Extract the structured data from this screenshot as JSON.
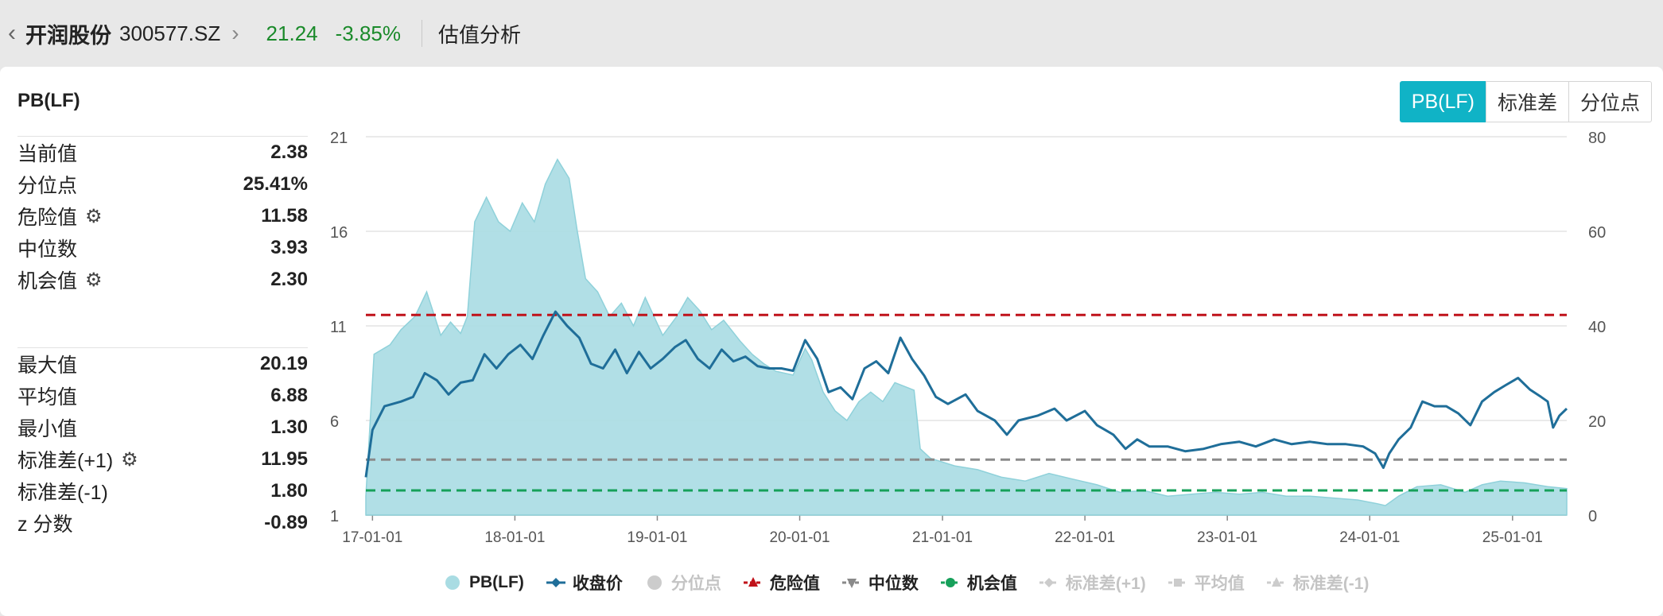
{
  "header": {
    "back_icon": "chevron-left-icon",
    "stock_name": "开润股份",
    "stock_code": "300577.SZ",
    "nav_icon": "chevron-right-icon",
    "price": "21.24",
    "change": "-3.85%",
    "section": "估值分析",
    "price_color": "#1a8a2a"
  },
  "panel": {
    "title": "PB(LF)",
    "tabs": [
      "PB(LF)",
      "标准差",
      "分位点"
    ],
    "active_tab": "PB(LF)",
    "accent": "#10b3c6"
  },
  "stats_top": [
    {
      "label": "当前值",
      "value": "2.38",
      "gear": false
    },
    {
      "label": "分位点",
      "value": "25.41%",
      "gear": false
    },
    {
      "label": "危险值",
      "value": "11.58",
      "gear": true
    },
    {
      "label": "中位数",
      "value": "3.93",
      "gear": false
    },
    {
      "label": "机会值",
      "value": "2.30",
      "gear": true
    }
  ],
  "stats_bottom": [
    {
      "label": "最大值",
      "value": "20.19",
      "gear": false
    },
    {
      "label": "平均值",
      "value": "6.88",
      "gear": false
    },
    {
      "label": "最小值",
      "value": "1.30",
      "gear": false
    },
    {
      "label": "标准差(+1)",
      "value": "11.95",
      "gear": true
    },
    {
      "label": "标准差(-1)",
      "value": "1.80",
      "gear": false
    },
    {
      "label": "z 分数",
      "value": "-0.89",
      "gear": false
    }
  ],
  "legend": [
    {
      "label": "PB(LF)",
      "color": "#a9dce3",
      "marker": "circle",
      "active": true
    },
    {
      "label": "收盘价",
      "color": "#1f6e99",
      "marker": "line-diamond",
      "active": true
    },
    {
      "label": "分位点",
      "color": "#cccccc",
      "marker": "circle",
      "active": false
    },
    {
      "label": "危险值",
      "color": "#c0121a",
      "marker": "dash-triangle",
      "active": true
    },
    {
      "label": "中位数",
      "color": "#8a8a8a",
      "marker": "dash-triangle-down",
      "active": true
    },
    {
      "label": "机会值",
      "color": "#16a05a",
      "marker": "dash-circle",
      "active": true
    },
    {
      "label": "标准差(+1)",
      "color": "#cccccc",
      "marker": "dash-diamond",
      "active": false
    },
    {
      "label": "平均值",
      "color": "#cccccc",
      "marker": "dash-square",
      "active": false
    },
    {
      "label": "标准差(-1)",
      "color": "#cccccc",
      "marker": "dash-triangle",
      "active": false
    }
  ],
  "chart_data": {
    "type": "area",
    "x_ticks": [
      "17-01-01",
      "18-01-01",
      "19-01-01",
      "20-01-01",
      "21-01-01",
      "22-01-01",
      "23-01-01",
      "24-01-01",
      "25-01-01"
    ],
    "x_range": [
      "2016-12-15",
      "2025-05-20"
    ],
    "y_left_ticks": [
      1,
      6,
      11,
      16,
      21
    ],
    "y_left_range": [
      1,
      21
    ],
    "y_right_ticks": [
      0,
      20,
      40,
      60,
      80
    ],
    "y_right_range": [
      0,
      80
    ],
    "reference_lines": [
      {
        "name": "危险值",
        "value": 11.58,
        "axis": "left",
        "color": "#c0121a"
      },
      {
        "name": "中位数",
        "value": 3.93,
        "axis": "left",
        "color": "#8a8a8a"
      },
      {
        "name": "机会值",
        "value": 2.3,
        "axis": "left",
        "color": "#16a05a"
      }
    ],
    "series": [
      {
        "name": "PB(LF)",
        "axis": "left",
        "style": "area",
        "color": "#a9dce3",
        "points": [
          [
            "2016-12-15",
            2.0
          ],
          [
            "2017-01-05",
            9.5
          ],
          [
            "2017-02-15",
            10.0
          ],
          [
            "2017-03-15",
            10.8
          ],
          [
            "2017-04-20",
            11.5
          ],
          [
            "2017-05-20",
            12.8
          ],
          [
            "2017-06-25",
            10.5
          ],
          [
            "2017-07-20",
            11.2
          ],
          [
            "2017-08-15",
            10.6
          ],
          [
            "2017-09-01",
            11.5
          ],
          [
            "2017-09-20",
            16.5
          ],
          [
            "2017-10-20",
            17.8
          ],
          [
            "2017-11-20",
            16.5
          ],
          [
            "2017-12-20",
            16.0
          ],
          [
            "2018-01-20",
            17.5
          ],
          [
            "2018-02-20",
            16.5
          ],
          [
            "2018-03-20",
            18.5
          ],
          [
            "2018-04-20",
            19.8
          ],
          [
            "2018-05-20",
            18.8
          ],
          [
            "2018-06-10",
            16.0
          ],
          [
            "2018-07-01",
            13.5
          ],
          [
            "2018-08-01",
            12.8
          ],
          [
            "2018-09-01",
            11.5
          ],
          [
            "2018-10-01",
            12.2
          ],
          [
            "2018-11-01",
            11.0
          ],
          [
            "2018-12-01",
            12.5
          ],
          [
            "2019-01-15",
            10.5
          ],
          [
            "2019-02-20",
            11.5
          ],
          [
            "2019-03-20",
            12.5
          ],
          [
            "2019-04-20",
            11.8
          ],
          [
            "2019-05-20",
            10.8
          ],
          [
            "2019-06-20",
            11.3
          ],
          [
            "2019-08-01",
            10.2
          ],
          [
            "2019-09-01",
            9.5
          ],
          [
            "2019-10-01",
            9.0
          ],
          [
            "2019-11-01",
            8.6
          ],
          [
            "2019-12-15",
            8.4
          ],
          [
            "2020-01-15",
            9.8
          ],
          [
            "2020-02-01",
            9.2
          ],
          [
            "2020-03-01",
            7.5
          ],
          [
            "2020-04-01",
            6.5
          ],
          [
            "2020-05-01",
            6.0
          ],
          [
            "2020-06-01",
            7.0
          ],
          [
            "2020-07-01",
            7.5
          ],
          [
            "2020-08-01",
            7.0
          ],
          [
            "2020-09-01",
            8.0
          ],
          [
            "2020-10-20",
            7.6
          ],
          [
            "2020-11-05",
            4.5
          ],
          [
            "2020-12-01",
            4.0
          ],
          [
            "2021-02-01",
            3.6
          ],
          [
            "2021-04-01",
            3.4
          ],
          [
            "2021-06-01",
            3.0
          ],
          [
            "2021-08-01",
            2.8
          ],
          [
            "2021-10-01",
            3.2
          ],
          [
            "2021-12-01",
            2.9
          ],
          [
            "2022-02-01",
            2.6
          ],
          [
            "2022-04-01",
            2.2
          ],
          [
            "2022-06-01",
            2.3
          ],
          [
            "2022-08-01",
            2.0
          ],
          [
            "2022-10-01",
            2.1
          ],
          [
            "2022-12-01",
            2.2
          ],
          [
            "2023-02-01",
            2.1
          ],
          [
            "2023-04-01",
            2.2
          ],
          [
            "2023-06-01",
            2.0
          ],
          [
            "2023-08-01",
            2.0
          ],
          [
            "2023-10-01",
            1.9
          ],
          [
            "2023-12-01",
            1.8
          ],
          [
            "2024-01-20",
            1.6
          ],
          [
            "2024-02-10",
            1.5
          ],
          [
            "2024-03-15",
            2.0
          ],
          [
            "2024-05-01",
            2.5
          ],
          [
            "2024-07-01",
            2.6
          ],
          [
            "2024-09-01",
            2.2
          ],
          [
            "2024-10-15",
            2.6
          ],
          [
            "2024-12-01",
            2.8
          ],
          [
            "2025-02-01",
            2.7
          ],
          [
            "2025-04-01",
            2.5
          ],
          [
            "2025-05-20",
            2.4
          ]
        ]
      },
      {
        "name": "收盘价",
        "axis": "right",
        "style": "line",
        "color": "#1f6e99",
        "points": [
          [
            "2016-12-15",
            8.0
          ],
          [
            "2017-01-01",
            18.0
          ],
          [
            "2017-02-01",
            23.0
          ],
          [
            "2017-03-15",
            24.0
          ],
          [
            "2017-04-15",
            25.0
          ],
          [
            "2017-05-15",
            30.0
          ],
          [
            "2017-06-15",
            28.5
          ],
          [
            "2017-07-15",
            25.5
          ],
          [
            "2017-08-15",
            28.0
          ],
          [
            "2017-09-15",
            28.5
          ],
          [
            "2017-10-15",
            34.0
          ],
          [
            "2017-11-15",
            31.0
          ],
          [
            "2017-12-15",
            34.0
          ],
          [
            "2018-01-15",
            36.0
          ],
          [
            "2018-02-15",
            33.0
          ],
          [
            "2018-03-15",
            38.0
          ],
          [
            "2018-04-15",
            43.0
          ],
          [
            "2018-05-15",
            40.0
          ],
          [
            "2018-06-15",
            37.5
          ],
          [
            "2018-07-15",
            32.0
          ],
          [
            "2018-08-15",
            31.0
          ],
          [
            "2018-09-15",
            35.0
          ],
          [
            "2018-10-15",
            30.0
          ],
          [
            "2018-11-15",
            34.5
          ],
          [
            "2018-12-15",
            31.0
          ],
          [
            "2019-01-15",
            33.0
          ],
          [
            "2019-02-15",
            35.5
          ],
          [
            "2019-03-15",
            37.0
          ],
          [
            "2019-04-15",
            33.0
          ],
          [
            "2019-05-15",
            31.0
          ],
          [
            "2019-06-15",
            35.0
          ],
          [
            "2019-07-15",
            32.5
          ],
          [
            "2019-08-15",
            33.5
          ],
          [
            "2019-09-15",
            31.5
          ],
          [
            "2019-10-15",
            31.0
          ],
          [
            "2019-11-15",
            31.0
          ],
          [
            "2019-12-15",
            30.5
          ],
          [
            "2020-01-15",
            37.0
          ],
          [
            "2020-02-15",
            33.0
          ],
          [
            "2020-03-15",
            26.0
          ],
          [
            "2020-04-15",
            27.0
          ],
          [
            "2020-05-15",
            24.5
          ],
          [
            "2020-06-15",
            31.0
          ],
          [
            "2020-07-15",
            32.5
          ],
          [
            "2020-08-15",
            30.0
          ],
          [
            "2020-09-15",
            37.5
          ],
          [
            "2020-10-15",
            33.0
          ],
          [
            "2020-11-15",
            29.5
          ],
          [
            "2020-12-15",
            25.0
          ],
          [
            "2021-01-15",
            23.5
          ],
          [
            "2021-03-01",
            25.5
          ],
          [
            "2021-04-01",
            22.0
          ],
          [
            "2021-05-15",
            20.0
          ],
          [
            "2021-06-15",
            17.0
          ],
          [
            "2021-07-15",
            20.0
          ],
          [
            "2021-09-01",
            21.0
          ],
          [
            "2021-10-15",
            22.5
          ],
          [
            "2021-11-15",
            20.0
          ],
          [
            "2022-01-01",
            22.0
          ],
          [
            "2022-02-01",
            19.0
          ],
          [
            "2022-03-15",
            17.0
          ],
          [
            "2022-04-15",
            14.0
          ],
          [
            "2022-05-15",
            16.0
          ],
          [
            "2022-06-15",
            14.5
          ],
          [
            "2022-08-01",
            14.5
          ],
          [
            "2022-09-15",
            13.5
          ],
          [
            "2022-11-01",
            14.0
          ],
          [
            "2022-12-15",
            15.0
          ],
          [
            "2023-02-01",
            15.5
          ],
          [
            "2023-03-15",
            14.5
          ],
          [
            "2023-05-01",
            16.0
          ],
          [
            "2023-06-15",
            15.0
          ],
          [
            "2023-08-01",
            15.5
          ],
          [
            "2023-09-15",
            15.0
          ],
          [
            "2023-11-01",
            15.0
          ],
          [
            "2023-12-15",
            14.5
          ],
          [
            "2024-01-15",
            13.0
          ],
          [
            "2024-02-05",
            10.0
          ],
          [
            "2024-02-20",
            13.0
          ],
          [
            "2024-03-15",
            16.0
          ],
          [
            "2024-04-15",
            18.5
          ],
          [
            "2024-05-15",
            24.0
          ],
          [
            "2024-06-15",
            23.0
          ],
          [
            "2024-07-15",
            23.0
          ],
          [
            "2024-08-15",
            21.5
          ],
          [
            "2024-09-15",
            19.0
          ],
          [
            "2024-10-15",
            24.0
          ],
          [
            "2024-11-15",
            26.0
          ],
          [
            "2024-12-15",
            27.5
          ],
          [
            "2025-01-15",
            29.0
          ],
          [
            "2025-02-15",
            26.5
          ],
          [
            "2025-03-15",
            25.0
          ],
          [
            "2025-04-01",
            24.0
          ],
          [
            "2025-04-15",
            18.5
          ],
          [
            "2025-05-01",
            21.0
          ],
          [
            "2025-05-20",
            22.5
          ]
        ]
      }
    ]
  }
}
